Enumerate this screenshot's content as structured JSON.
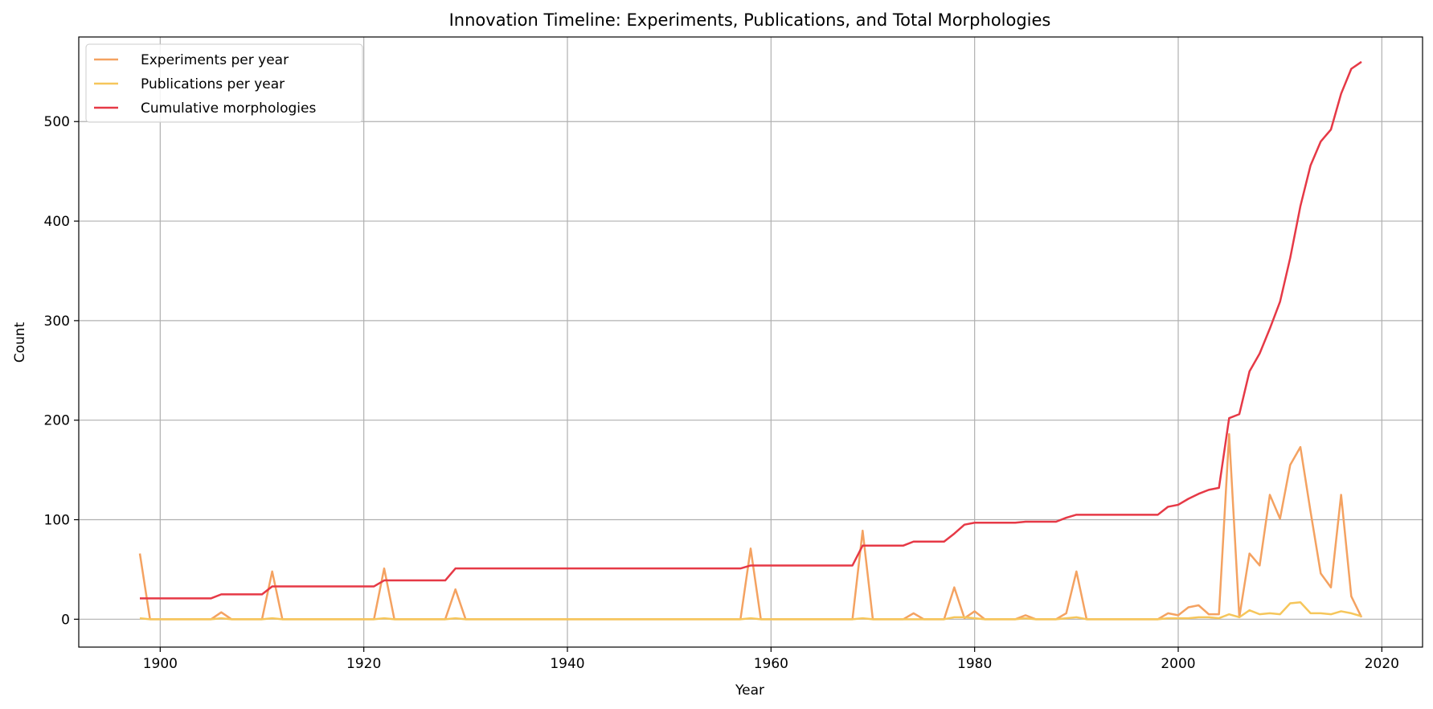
{
  "chart_data": {
    "type": "line",
    "title": "Innovation Timeline: Experiments, Publications, and Total Morphologies",
    "xlabel": "Year",
    "ylabel": "Count",
    "xlim": [
      1892,
      2024
    ],
    "ylim": [
      -28,
      585
    ],
    "xticks": [
      1900,
      1920,
      1940,
      1960,
      1980,
      2000,
      2020
    ],
    "yticks": [
      0,
      100,
      200,
      300,
      400,
      500
    ],
    "grid": true,
    "legend_position": "upper-left",
    "colors": {
      "experiments": "#f4a261",
      "publications": "#f6c65b",
      "cumulative": "#e63946",
      "grid": "#b0b0b0",
      "legend_border": "#cccccc"
    },
    "x": [
      1898,
      1899,
      1900,
      1901,
      1902,
      1903,
      1904,
      1905,
      1906,
      1907,
      1908,
      1909,
      1910,
      1911,
      1912,
      1913,
      1914,
      1915,
      1916,
      1917,
      1918,
      1919,
      1920,
      1921,
      1922,
      1923,
      1924,
      1925,
      1926,
      1927,
      1928,
      1929,
      1930,
      1931,
      1932,
      1933,
      1934,
      1935,
      1936,
      1937,
      1938,
      1939,
      1940,
      1941,
      1942,
      1943,
      1944,
      1945,
      1946,
      1947,
      1948,
      1949,
      1950,
      1951,
      1952,
      1953,
      1954,
      1955,
      1956,
      1957,
      1958,
      1959,
      1960,
      1961,
      1962,
      1963,
      1964,
      1965,
      1966,
      1967,
      1968,
      1969,
      1970,
      1971,
      1972,
      1973,
      1974,
      1975,
      1976,
      1977,
      1978,
      1979,
      1980,
      1981,
      1982,
      1983,
      1984,
      1985,
      1986,
      1987,
      1988,
      1989,
      1990,
      1991,
      1992,
      1993,
      1994,
      1995,
      1996,
      1997,
      1998,
      1999,
      2000,
      2001,
      2002,
      2003,
      2004,
      2005,
      2006,
      2007,
      2008,
      2009,
      2010,
      2011,
      2012,
      2013,
      2014,
      2015,
      2016,
      2017,
      2018
    ],
    "series": [
      {
        "name": "Experiments per year",
        "key": "experiments",
        "values": [
          66,
          0,
          0,
          0,
          0,
          0,
          0,
          0,
          7,
          0,
          0,
          0,
          0,
          48,
          0,
          0,
          0,
          0,
          0,
          0,
          0,
          0,
          0,
          0,
          51,
          0,
          0,
          0,
          0,
          0,
          0,
          30,
          0,
          0,
          0,
          0,
          0,
          0,
          0,
          0,
          0,
          0,
          0,
          0,
          0,
          0,
          0,
          0,
          0,
          0,
          0,
          0,
          0,
          0,
          0,
          0,
          0,
          0,
          0,
          0,
          71,
          0,
          0,
          0,
          0,
          0,
          0,
          0,
          0,
          0,
          0,
          89,
          0,
          0,
          0,
          0,
          6,
          0,
          0,
          0,
          32,
          1,
          8,
          0,
          0,
          0,
          0,
          4,
          0,
          0,
          0,
          6,
          48,
          0,
          0,
          0,
          0,
          0,
          0,
          0,
          0,
          6,
          4,
          12,
          14,
          5,
          5,
          186,
          2,
          66,
          54,
          125,
          101,
          155,
          173,
          108,
          46,
          32,
          125,
          23,
          2
        ]
      },
      {
        "name": "Publications per year",
        "key": "publications",
        "values": [
          1,
          0,
          0,
          0,
          0,
          0,
          0,
          0,
          1,
          0,
          0,
          0,
          0,
          1,
          0,
          0,
          0,
          0,
          0,
          0,
          0,
          0,
          0,
          0,
          1,
          0,
          0,
          0,
          0,
          0,
          0,
          1,
          0,
          0,
          0,
          0,
          0,
          0,
          0,
          0,
          0,
          0,
          0,
          0,
          0,
          0,
          0,
          0,
          0,
          0,
          0,
          0,
          0,
          0,
          0,
          0,
          0,
          0,
          0,
          0,
          1,
          0,
          0,
          0,
          0,
          0,
          0,
          0,
          0,
          0,
          0,
          1,
          0,
          0,
          0,
          0,
          0,
          0,
          0,
          0,
          2,
          2,
          1,
          0,
          0,
          0,
          0,
          1,
          0,
          0,
          0,
          1,
          2,
          0,
          0,
          0,
          0,
          0,
          0,
          0,
          0,
          1,
          1,
          1,
          2,
          2,
          1,
          5,
          2,
          9,
          5,
          6,
          5,
          16,
          17,
          6,
          6,
          5,
          8,
          6,
          3
        ]
      },
      {
        "name": "Cumulative morphologies",
        "key": "cumulative",
        "values": [
          21,
          21,
          21,
          21,
          21,
          21,
          21,
          21,
          25,
          25,
          25,
          25,
          25,
          33,
          33,
          33,
          33,
          33,
          33,
          33,
          33,
          33,
          33,
          33,
          39,
          39,
          39,
          39,
          39,
          39,
          39,
          51,
          51,
          51,
          51,
          51,
          51,
          51,
          51,
          51,
          51,
          51,
          51,
          51,
          51,
          51,
          51,
          51,
          51,
          51,
          51,
          51,
          51,
          51,
          51,
          51,
          51,
          51,
          51,
          51,
          54,
          54,
          54,
          54,
          54,
          54,
          54,
          54,
          54,
          54,
          54,
          74,
          74,
          74,
          74,
          74,
          78,
          78,
          78,
          78,
          86,
          95,
          97,
          97,
          97,
          97,
          97,
          98,
          98,
          98,
          98,
          102,
          105,
          105,
          105,
          105,
          105,
          105,
          105,
          105,
          105,
          113,
          115,
          121,
          126,
          130,
          132,
          202,
          206,
          249,
          267,
          292,
          319,
          363,
          415,
          456,
          480,
          492,
          528,
          553,
          560
        ]
      }
    ]
  }
}
